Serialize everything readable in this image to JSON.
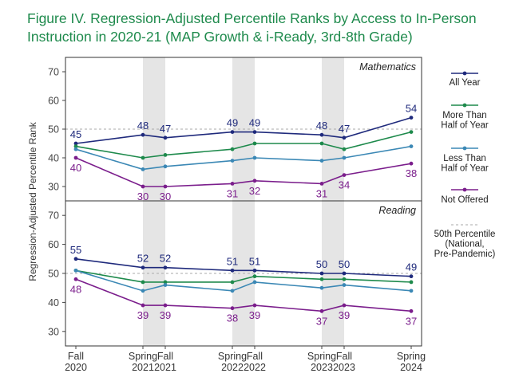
{
  "title_line1": "Figure IV. Regression-Adjusted Percentile Ranks by Access to In-Person",
  "title_line2": "Instruction in 2020-21 (MAP Growth & i-Ready, 3rd-8th Grade)",
  "ylabel": "Regression-Adjusted Percentile Rank",
  "colors": {
    "all_year": "#1f2a7c",
    "more_than_half": "#1e8a4c",
    "less_than_half": "#3b88b5",
    "not_offered": "#7b1e8c",
    "reference": "#aaaaaa",
    "shade": "#e5e5e5"
  },
  "chart_data": {
    "type": "line",
    "x_ticks": [
      {
        "l1": "Fall",
        "l2": "2020"
      },
      {
        "l1": "Spring",
        "l2": "2021"
      },
      {
        "l1": "Fall",
        "l2": "2021"
      },
      {
        "l1": "Spring",
        "l2": "2022"
      },
      {
        "l1": "Fall",
        "l2": "2022"
      },
      {
        "l1": "Spring",
        "l2": "2023"
      },
      {
        "l1": "Fall",
        "l2": "2023"
      },
      {
        "l1": "Spring",
        "l2": "2024"
      }
    ],
    "ylim": [
      25,
      75
    ],
    "yticks": [
      30,
      40,
      50,
      60,
      70
    ],
    "reference_value": 50,
    "legend": [
      {
        "key": "all_year",
        "lines": [
          "All Year"
        ]
      },
      {
        "key": "more_than_half",
        "lines": [
          "More Than",
          "Half of Year"
        ]
      },
      {
        "key": "less_than_half",
        "lines": [
          "Less Than",
          "Half of Year"
        ]
      },
      {
        "key": "not_offered",
        "lines": [
          "Not Offered"
        ]
      },
      {
        "key": "reference",
        "lines": [
          "50th Percentile",
          "(National,",
          "Pre-Pandemic)"
        ]
      }
    ],
    "panels": [
      {
        "name": "Mathematics",
        "series": [
          {
            "key": "all_year",
            "values": [
              45,
              48,
              47,
              49,
              49,
              48,
              47,
              54
            ],
            "labels": [
              "45",
              "48",
              "47",
              "49",
              "49",
              "48",
              "47",
              "54"
            ],
            "label_pos": "above"
          },
          {
            "key": "more_than_half",
            "values": [
              44,
              40,
              41,
              43,
              45,
              45,
              43,
              49
            ]
          },
          {
            "key": "less_than_half",
            "values": [
              43,
              36,
              37,
              39,
              40,
              39,
              40,
              44
            ]
          },
          {
            "key": "not_offered",
            "values": [
              40,
              30,
              30,
              31,
              32,
              31,
              34,
              38
            ],
            "labels": [
              "40",
              "30",
              "30",
              "31",
              "32",
              "31",
              "34",
              "38"
            ],
            "label_pos": "below"
          }
        ]
      },
      {
        "name": "Reading",
        "series": [
          {
            "key": "all_year",
            "values": [
              55,
              52,
              52,
              51,
              51,
              50,
              50,
              49
            ],
            "labels": [
              "55",
              "52",
              "52",
              "51",
              "51",
              "50",
              "50",
              "49"
            ],
            "label_pos": "above"
          },
          {
            "key": "more_than_half",
            "values": [
              51,
              47,
              47,
              47,
              49,
              48,
              48,
              47
            ]
          },
          {
            "key": "less_than_half",
            "values": [
              51,
              44,
              46,
              44,
              47,
              45,
              46,
              44
            ]
          },
          {
            "key": "not_offered",
            "values": [
              48,
              39,
              39,
              38,
              39,
              37,
              39,
              37
            ],
            "labels": [
              "48",
              "39",
              "39",
              "38",
              "39",
              "37",
              "39",
              "37"
            ],
            "label_pos": "below"
          }
        ]
      }
    ]
  }
}
